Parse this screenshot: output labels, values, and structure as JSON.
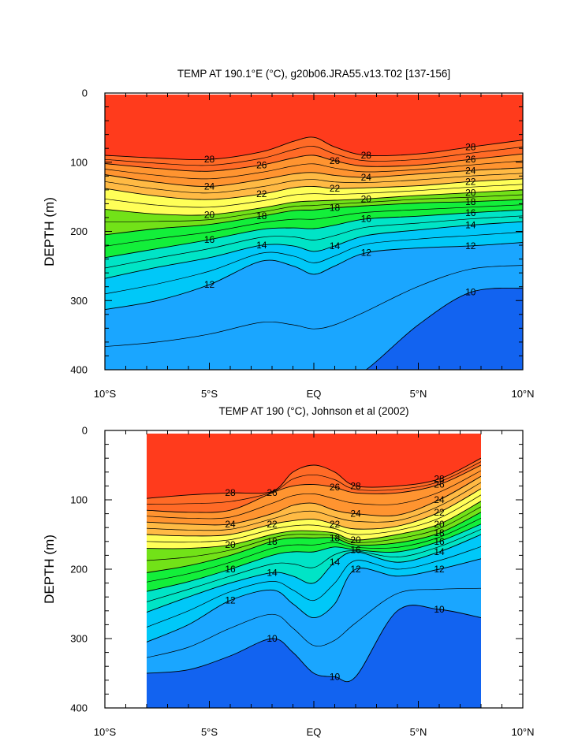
{
  "chart_data": [
    {
      "type": "contour",
      "title": "TEMP AT 190.1°E (°C), g20b06.JRA55.v13.T02 [137-156]",
      "ylabel": "DEPTH (m)",
      "xlabel": "",
      "xlim": [
        -10,
        10
      ],
      "ylim": [
        0,
        400
      ],
      "y_inverted": true,
      "x_ticks": [
        {
          "value": -10,
          "label": "10°S"
        },
        {
          "value": -5,
          "label": "5°S"
        },
        {
          "value": 0,
          "label": "EQ"
        },
        {
          "value": 5,
          "label": "5°N"
        },
        {
          "value": 10,
          "label": "10°N"
        }
      ],
      "y_ticks": [
        {
          "value": 0,
          "label": "0"
        },
        {
          "value": 100,
          "label": "100"
        },
        {
          "value": 200,
          "label": "200"
        },
        {
          "value": 300,
          "label": "300"
        },
        {
          "value": 400,
          "label": "400"
        }
      ],
      "data_xlim": [
        -10,
        10
      ],
      "x": [
        -10,
        -7.5,
        -5,
        -2.5,
        -1,
        0,
        1,
        2.5,
        5,
        7.5,
        10
      ],
      "isotherm_depths": {
        "28": [
          90,
          94,
          96,
          85,
          70,
          64,
          78,
          90,
          88,
          78,
          68
        ],
        "26": [
          102,
          109,
          113,
          104,
          94,
          90,
          98,
          106,
          104,
          96,
          88
        ],
        "24": [
          118,
          129,
          135,
          125,
          117,
          115,
          119,
          122,
          117,
          112,
          108
        ],
        "22": [
          138,
          149,
          154,
          146,
          137,
          135,
          138,
          137,
          134,
          128,
          124
        ],
        "20": [
          168,
          175,
          176,
          166,
          158,
          156,
          155,
          153,
          148,
          144,
          140
        ],
        "18": [
          205,
          196,
          190,
          178,
          170,
          169,
          166,
          163,
          159,
          157,
          154
        ],
        "16": [
          238,
          225,
          212,
          197,
          195,
          196,
          191,
          182,
          178,
          173,
          169
        ],
        "14": [
          268,
          252,
          238,
          220,
          221,
          229,
          221,
          206,
          198,
          191,
          186
        ],
        "12": [
          313,
          300,
          277,
          243,
          250,
          262,
          250,
          231,
          224,
          221,
          216
        ],
        "10": [
          420,
          420,
          420,
          420,
          420,
          420,
          420,
          400,
          335,
          288,
          282
        ]
      },
      "contour_labels": [
        "28",
        "26",
        "24",
        "22",
        "20",
        "18",
        "16",
        "14",
        "12",
        "10"
      ],
      "colors": {
        "28": "#ff3b1c",
        "26": "#ff6a26",
        "24": "#ff9430",
        "22": "#ffba44",
        "20": "#ffff58",
        "18": "#72e218",
        "16": "#13ef3a",
        "14": "#00e4c6",
        "12": "#00c8f8",
        "10": "#1aa6ff",
        "below": "#1263f0",
        "warmest": "#ee0000"
      }
    },
    {
      "type": "contour",
      "title": "TEMP AT 190 (°C), Johnson et al (2002)",
      "ylabel": "DEPTH (m)",
      "xlabel": "",
      "xlim": [
        -10,
        10
      ],
      "ylim": [
        0,
        400
      ],
      "y_inverted": true,
      "x_ticks": [
        {
          "value": -10,
          "label": "10°S"
        },
        {
          "value": -5,
          "label": "5°S"
        },
        {
          "value": 0,
          "label": "EQ"
        },
        {
          "value": 5,
          "label": "5°N"
        },
        {
          "value": 10,
          "label": "10°N"
        }
      ],
      "y_ticks": [
        {
          "value": 0,
          "label": "0"
        },
        {
          "value": 100,
          "label": "100"
        },
        {
          "value": 200,
          "label": "200"
        },
        {
          "value": 300,
          "label": "300"
        },
        {
          "value": 400,
          "label": "400"
        }
      ],
      "data_xlim": [
        -8,
        8
      ],
      "x": [
        -8,
        -6,
        -4,
        -2,
        -1,
        0,
        1,
        2,
        4,
        6,
        8
      ],
      "isotherm_depths": {
        "28": [
          98,
          93,
          90,
          88,
          60,
          50,
          60,
          80,
          80,
          70,
          40
        ],
        "26": [
          115,
          118,
          115,
          90,
          80,
          78,
          82,
          90,
          90,
          78,
          50
        ],
        "24": [
          132,
          135,
          135,
          120,
          108,
          105,
          115,
          120,
          122,
          100,
          66
        ],
        "22": [
          150,
          152,
          150,
          135,
          130,
          128,
          135,
          142,
          138,
          118,
          84
        ],
        "20": [
          170,
          170,
          165,
          150,
          145,
          145,
          148,
          158,
          150,
          135,
          102
        ],
        "18": [
          205,
          195,
          180,
          160,
          155,
          155,
          155,
          165,
          162,
          148,
          118
        ],
        "16": [
          232,
          218,
          200,
          180,
          175,
          175,
          168,
          172,
          175,
          160,
          135
        ],
        "14": [
          262,
          240,
          220,
          205,
          210,
          220,
          190,
          175,
          190,
          175,
          150
        ],
        "12": [
          305,
          280,
          245,
          230,
          250,
          270,
          250,
          200,
          210,
          200,
          185
        ],
        "10": [
          350,
          345,
          325,
          300,
          320,
          350,
          355,
          355,
          260,
          258,
          270
        ]
      },
      "contour_labels": [
        "28",
        "26",
        "24",
        "22",
        "20",
        "18",
        "16",
        "14",
        "12",
        "10"
      ],
      "colors": {
        "28": "#ff3b1c",
        "26": "#ff6a26",
        "24": "#ff9430",
        "22": "#ffba44",
        "20": "#ffff58",
        "18": "#72e218",
        "16": "#13ef3a",
        "14": "#00e4c6",
        "12": "#00c8f8",
        "10": "#1aa6ff",
        "below": "#1263f0",
        "warmest": "#ee0000"
      }
    }
  ]
}
